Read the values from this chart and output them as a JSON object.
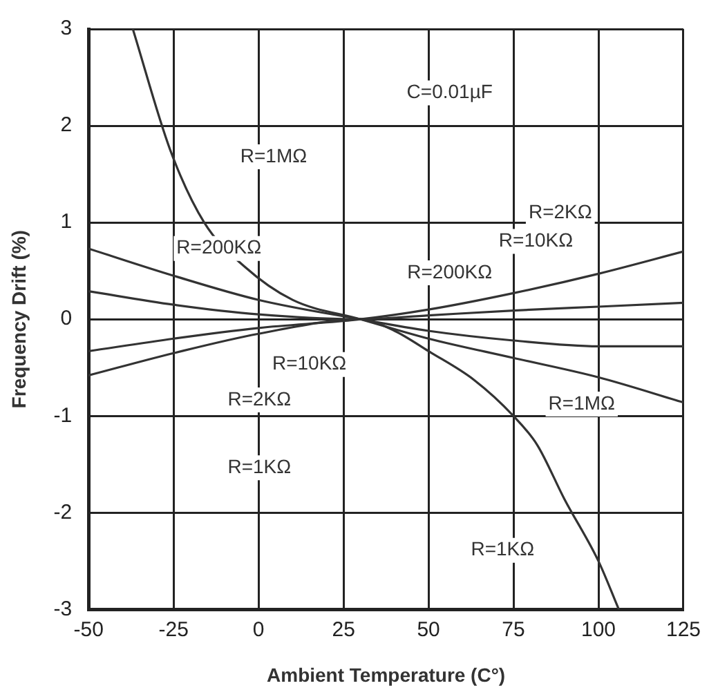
{
  "chart_data": {
    "type": "line",
    "xlabel": "Ambient Temperature (C°)",
    "ylabel": "Frequency Drift (%)",
    "xlim": [
      -50,
      125
    ],
    "xticks": [
      -50,
      -25,
      0,
      25,
      50,
      75,
      100,
      125
    ],
    "ylim": [
      -3,
      3
    ],
    "yticks": [
      -3,
      -2,
      -1,
      0,
      1,
      2,
      3
    ],
    "grid": true,
    "marker": "none",
    "line_style": "solid",
    "series": [
      {
        "color": "#333333",
        "x": [
          -37,
          -26,
          -16,
          -4,
          10,
          30,
          50,
          75,
          100,
          125
        ],
        "values": [
          3,
          1.75,
          1,
          0.54,
          0.2,
          0,
          -0.2,
          -0.4,
          -0.6,
          -0.86
        ]
      },
      {
        "color": "#333333",
        "x": [
          -50,
          -25,
          0,
          30,
          50,
          75,
          100,
          125
        ],
        "values": [
          0.73,
          0.45,
          0.2,
          0,
          -0.12,
          -0.22,
          -0.28,
          -0.28
        ]
      },
      {
        "color": "#333333",
        "x": [
          -50,
          -25,
          0,
          30,
          50,
          75,
          100,
          125
        ],
        "values": [
          0.29,
          0.15,
          0.05,
          0,
          0.04,
          0.09,
          0.13,
          0.17
        ]
      },
      {
        "color": "#333333",
        "x": [
          -50,
          -25,
          0,
          30,
          50,
          75,
          100,
          125
        ],
        "values": [
          -0.33,
          -0.2,
          -0.09,
          0,
          0.1,
          0.27,
          0.47,
          0.7
        ]
      },
      {
        "color": "#333333",
        "x": [
          -50,
          -25,
          0,
          30,
          40,
          50,
          63.5,
          75,
          82,
          90,
          100,
          106
        ],
        "values": [
          -0.58,
          -0.35,
          -0.15,
          0,
          -0.12,
          -0.33,
          -0.63,
          -1,
          -1.3,
          -1.86,
          -2.5,
          -3
        ]
      }
    ],
    "annotations": [
      "C=0.01µF",
      "R=1MΩ",
      "R=200KΩ",
      "R=2KΩ",
      "R=10KΩ",
      "R=200KΩ",
      "R=10KΩ",
      "R=2KΩ",
      "R=1KΩ",
      "R=1MΩ",
      "R=1KΩ"
    ]
  }
}
